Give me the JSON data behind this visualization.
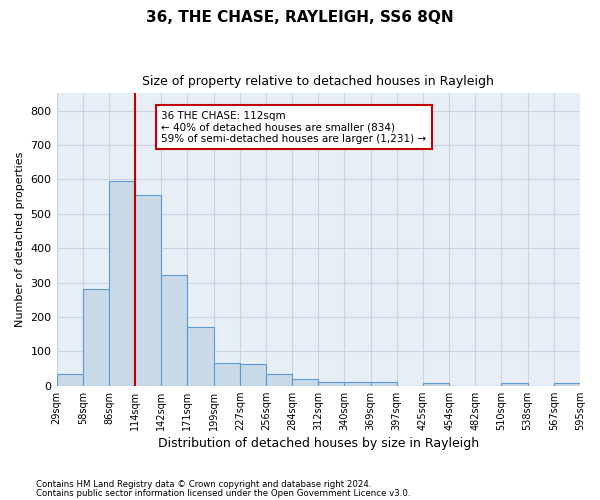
{
  "title": "36, THE CHASE, RAYLEIGH, SS6 8QN",
  "subtitle": "Size of property relative to detached houses in Rayleigh",
  "xlabel": "Distribution of detached houses by size in Rayleigh",
  "ylabel": "Number of detached properties",
  "bar_values": [
    35,
    280,
    595,
    553,
    323,
    170,
    65,
    63,
    35,
    20,
    12,
    10,
    10,
    0,
    8,
    0,
    0,
    8,
    0,
    8
  ],
  "bar_labels": [
    "29sqm",
    "58sqm",
    "86sqm",
    "114sqm",
    "142sqm",
    "171sqm",
    "199sqm",
    "227sqm",
    "256sqm",
    "284sqm",
    "312sqm",
    "340sqm",
    "369sqm",
    "397sqm",
    "425sqm",
    "454sqm",
    "482sqm",
    "510sqm",
    "538sqm",
    "567sqm",
    "595sqm"
  ],
  "bar_color": "#c9d9e8",
  "bar_edge_color": "#5b9bd5",
  "vline_color": "#c00000",
  "annotation_text": "36 THE CHASE: 112sqm\n← 40% of detached houses are smaller (834)\n59% of semi-detached houses are larger (1,231) →",
  "annotation_box_edgecolor": "#c00000",
  "ylim": [
    0,
    850
  ],
  "yticks": [
    0,
    100,
    200,
    300,
    400,
    500,
    600,
    700,
    800
  ],
  "grid_color": "#c8d4e3",
  "bg_color": "#e8eef5",
  "footer_line1": "Contains HM Land Registry data © Crown copyright and database right 2024.",
  "footer_line2": "Contains public sector information licensed under the Open Government Licence v3.0."
}
